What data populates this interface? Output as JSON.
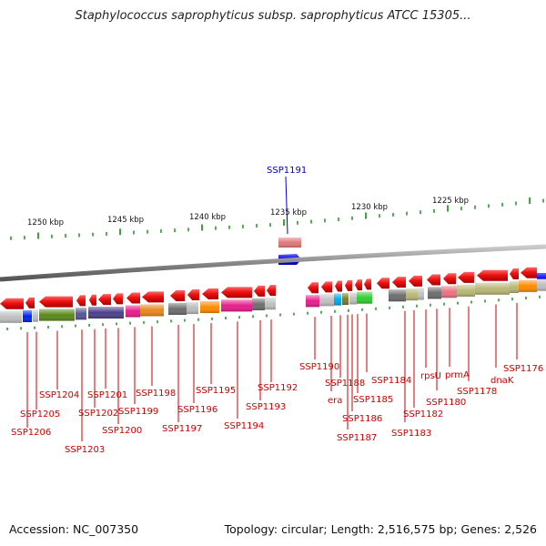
{
  "title": "Staphylococcus saprophyticus subsp. saprophyticus ATCC 15305...",
  "footer": {
    "accession": "Accession: NC_007350",
    "topology": "Topology: circular; Length: 2,516,575 bp; Genes: 2,526"
  },
  "highlight": {
    "label": "SSP1191"
  },
  "kbp_labels": [
    {
      "text": "1250 kbp"
    },
    {
      "text": "1245 kbp"
    },
    {
      "text": "1240 kbp"
    },
    {
      "text": "1235 kbp"
    },
    {
      "text": "1230 kbp"
    },
    {
      "text": "1225 kbp"
    }
  ],
  "gene_labels": [
    "SSP1206",
    "SSP1205",
    "SSP1204",
    "SSP1203",
    "SSP1202",
    "SSP1201",
    "SSP1200",
    "SSP1199",
    "SSP1198",
    "SSP1197",
    "SSP1196",
    "SSP1195",
    "SSP1194",
    "SSP1193",
    "SSP1192",
    "SSP1190",
    "era",
    "SSP1188",
    "SSP1187",
    "SSP1186",
    "SSP1185",
    "SSP1184",
    "SSP1183",
    "SSP1182",
    "rpsU",
    "SSP1180",
    "prmA",
    "SSP1178",
    "dnaK",
    "SSP1176"
  ],
  "colors": {
    "gene_arrow": "#ee1111",
    "label": "#cc0000",
    "highlight_label": "#0000cc",
    "backbone": "#888888",
    "tick": "#118811"
  }
}
